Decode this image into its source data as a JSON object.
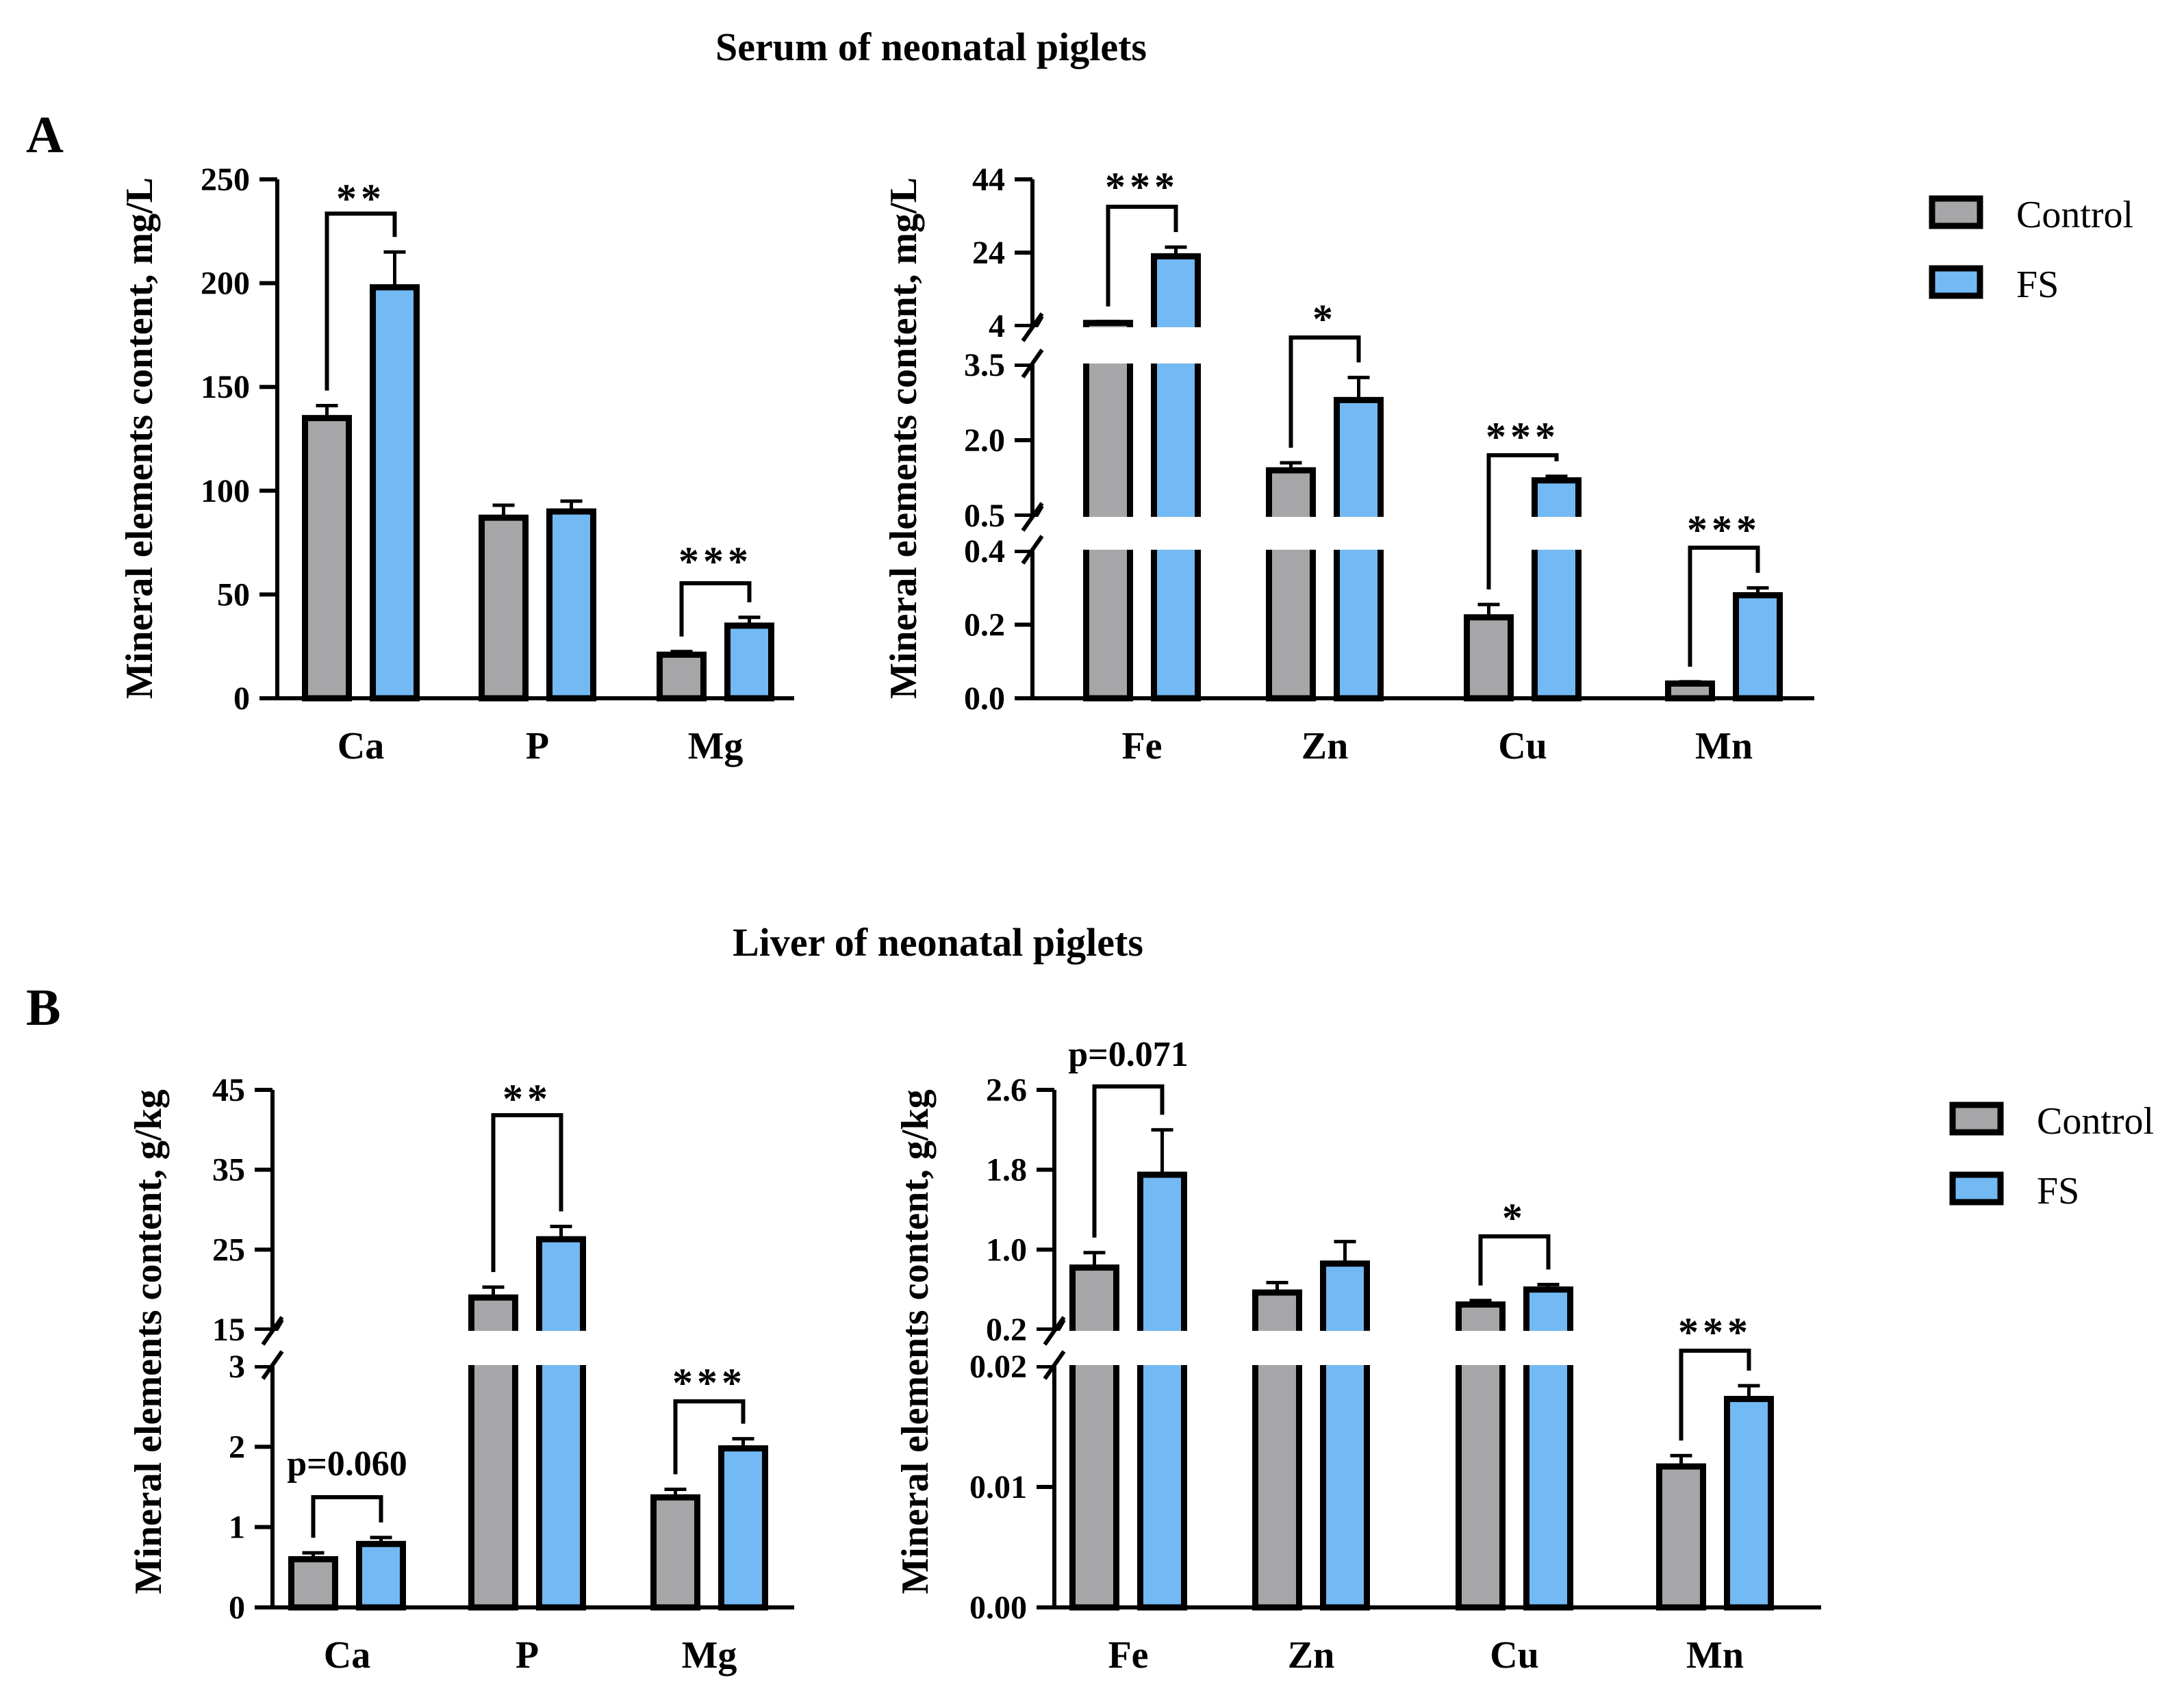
{
  "figure": {
    "panel_a": {
      "letter": "A",
      "title": "Serum of neonatal piglets"
    },
    "panel_b": {
      "letter": "B",
      "title": "Liver of neonatal piglets"
    },
    "legend": {
      "control": "Control",
      "fs": "FS"
    },
    "colors": {
      "control": "#a6a6a8",
      "fs": "#73b9f3",
      "stroke": "#000000"
    }
  },
  "chart_data": [
    {
      "id": "serum_major",
      "type": "bar",
      "title": "Serum of neonatal piglets",
      "ylabel": "Mineral elements content, mg/L",
      "categories": [
        "Ca",
        "P",
        "Mg"
      ],
      "ylim": [
        0,
        250
      ],
      "yticks": [
        "0",
        "50",
        "100",
        "150",
        "200",
        "250"
      ],
      "series": [
        {
          "name": "Control",
          "values": [
            135,
            87,
            21
          ],
          "errors": [
            6,
            6,
            1.5
          ]
        },
        {
          "name": "FS",
          "values": [
            198,
            90,
            35
          ],
          "errors": [
            17,
            5,
            4
          ]
        }
      ],
      "significance": [
        "**",
        "",
        "***"
      ]
    },
    {
      "id": "serum_trace",
      "type": "bar",
      "title": "Serum of neonatal piglets",
      "ylabel": "Mineral elements content, mg/L",
      "categories": [
        "Fe",
        "Zn",
        "Cu",
        "Mn"
      ],
      "broken_axis": [
        {
          "range": [
            0,
            0.4
          ],
          "ticks": [
            "0.0",
            "0.2",
            "0.4"
          ]
        },
        {
          "range": [
            0.5,
            3.5
          ],
          "ticks": [
            "0.5",
            "2.0",
            "3.5"
          ]
        },
        {
          "range": [
            4,
            44
          ],
          "ticks": [
            "4",
            "24",
            "44"
          ]
        }
      ],
      "series": [
        {
          "name": "Control",
          "values": [
            4.8,
            1.4,
            0.22,
            0.04
          ],
          "errors": [
            0.4,
            0.15,
            0.035,
            0.005
          ]
        },
        {
          "name": "FS",
          "values": [
            23,
            2.8,
            1.2,
            0.28
          ],
          "errors": [
            2.5,
            0.45,
            0.08,
            0.02
          ]
        }
      ],
      "significance": [
        "***",
        "*",
        "***",
        "***"
      ]
    },
    {
      "id": "liver_major",
      "type": "bar",
      "title": "Liver of neonatal piglets",
      "ylabel": "Mineral elements content, g/kg",
      "categories": [
        "Ca",
        "P",
        "Mg"
      ],
      "broken_axis": [
        {
          "range": [
            0,
            3
          ],
          "ticks": [
            "0",
            "1",
            "2",
            "3"
          ]
        },
        {
          "range": [
            15,
            45
          ],
          "ticks": [
            "15",
            "25",
            "35",
            "45"
          ]
        }
      ],
      "series": [
        {
          "name": "Control",
          "values": [
            0.6,
            19,
            1.37
          ],
          "errors": [
            0.08,
            1.3,
            0.1
          ]
        },
        {
          "name": "FS",
          "values": [
            0.79,
            26.3,
            1.98
          ],
          "errors": [
            0.08,
            1.6,
            0.12
          ]
        }
      ],
      "significance": [
        "p=0.060",
        "**",
        "***"
      ]
    },
    {
      "id": "liver_trace",
      "type": "bar",
      "title": "Liver of neonatal piglets",
      "ylabel": "Mineral elements content, g/kg",
      "categories": [
        "Fe",
        "Zn",
        "Cu",
        "Mn"
      ],
      "broken_axis": [
        {
          "range": [
            0,
            0.02
          ],
          "ticks": [
            "0.00",
            "0.01",
            "0.02"
          ]
        },
        {
          "range": [
            0.2,
            2.6
          ],
          "ticks": [
            "0.2",
            "1.0",
            "1.8",
            "2.6"
          ]
        }
      ],
      "series": [
        {
          "name": "Control",
          "values": [
            0.82,
            0.57,
            0.45,
            0.0117
          ],
          "errors": [
            0.15,
            0.1,
            0.04,
            0.0009
          ]
        },
        {
          "name": "FS",
          "values": [
            1.75,
            0.86,
            0.6,
            0.0173
          ],
          "errors": [
            0.45,
            0.22,
            0.05,
            0.0011
          ]
        }
      ],
      "significance": [
        "p=0.071",
        "",
        "*",
        "***"
      ]
    }
  ]
}
